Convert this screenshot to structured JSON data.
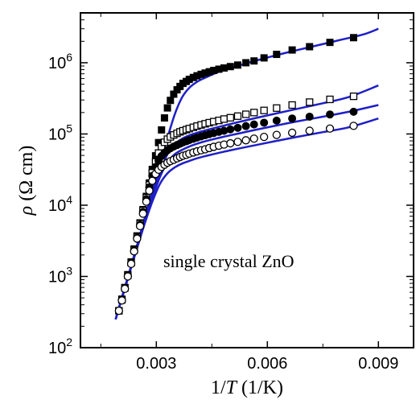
{
  "chart_data": {
    "type": "scatter",
    "title": "",
    "xlabel_prefix": "1/",
    "xlabel_var": "T",
    "xlabel_unit": " (1/K)",
    "ylabel_var": "ρ",
    "ylabel_unit": " (Ω cm)",
    "annotation": "single crystal ZnO",
    "xlim": [
      0.00095,
      0.00995
    ],
    "ylim_log10": [
      2,
      6.7
    ],
    "y_scale": "log",
    "grid": false,
    "legend": "none",
    "x_ticks": [
      {
        "value": 0.003,
        "label": "0.003"
      },
      {
        "value": 0.006,
        "label": "0.006"
      },
      {
        "value": 0.009,
        "label": "0.009"
      }
    ],
    "y_ticks": [
      {
        "exp": 2,
        "base": "10",
        "sup": "2"
      },
      {
        "exp": 3,
        "base": "10",
        "sup": "3"
      },
      {
        "exp": 4,
        "base": "10",
        "sup": "4"
      },
      {
        "exp": 5,
        "base": "10",
        "sup": "5"
      },
      {
        "exp": 6,
        "base": "10",
        "sup": "6"
      }
    ],
    "fit_color": "#1f1fc8",
    "series": [
      {
        "marker": "filled-square",
        "x": [
          0.00199,
          0.00207,
          0.00215,
          0.00223,
          0.00232,
          0.0024,
          0.00248,
          0.00256,
          0.00264,
          0.00273,
          0.00281,
          0.00289,
          0.00298,
          0.00306,
          0.00314,
          0.00322,
          0.0033,
          0.00338,
          0.00347,
          0.00356,
          0.00364,
          0.00372,
          0.00381,
          0.00389,
          0.004,
          0.0041,
          0.00421,
          0.00432,
          0.00443,
          0.00455,
          0.00469,
          0.00483,
          0.005,
          0.0052,
          0.00542,
          0.00564,
          0.00591,
          0.00625,
          0.00667,
          0.00714,
          0.00769,
          0.00833
        ],
        "y": [
          330,
          480,
          700,
          1060,
          1600,
          2430,
          3710,
          5650,
          8670,
          13300,
          20500,
          31800,
          49400,
          75700,
          114000,
          168000,
          232000,
          296000,
          362000,
          417000,
          465000,
          513000,
          546000,
          584000,
          621000,
          656000,
          688000,
          717000,
          747000,
          779000,
          812000,
          844000,
          883000,
          928000,
          1000000,
          1060000,
          1170000,
          1310000,
          1510000,
          1680000,
          1930000,
          2250000
        ],
        "fit_x": [
          0.0019,
          0.0021,
          0.0023,
          0.0025,
          0.0027,
          0.0029,
          0.0031,
          0.0033,
          0.0035,
          0.0037,
          0.0039,
          0.0041,
          0.0043,
          0.0045,
          0.0048,
          0.0052,
          0.0056,
          0.0061,
          0.0066,
          0.0072,
          0.0079,
          0.0086,
          0.009
        ],
        "fit_y": [
          250,
          580,
          1300,
          3000,
          7000,
          16000,
          38000,
          88000,
          190000,
          330000,
          450000,
          540000,
          610000,
          680000,
          780000,
          900000,
          1040000,
          1220000,
          1420000,
          1680000,
          2050000,
          2500000,
          3000000
        ]
      },
      {
        "marker": "open-square",
        "x": [
          0.00199,
          0.00207,
          0.00215,
          0.00223,
          0.00232,
          0.0024,
          0.00248,
          0.00256,
          0.00264,
          0.00273,
          0.00281,
          0.00289,
          0.00298,
          0.00306,
          0.00314,
          0.00322,
          0.0033,
          0.00338,
          0.00347,
          0.00356,
          0.00364,
          0.00372,
          0.00381,
          0.00389,
          0.004,
          0.0041,
          0.00421,
          0.00432,
          0.00443,
          0.00455,
          0.00469,
          0.00483,
          0.005,
          0.0052,
          0.00542,
          0.00564,
          0.00591,
          0.00625,
          0.00667,
          0.00714,
          0.00769,
          0.00833
        ],
        "y": [
          330,
          470,
          690,
          1040,
          1560,
          2350,
          3600,
          5500,
          8400,
          12700,
          19200,
          28500,
          40500,
          54000,
          66500,
          76500,
          84500,
          91000,
          97000,
          102000,
          107000,
          111000,
          115000,
          119000,
          124000,
          129000,
          134000,
          139000,
          144000,
          149000,
          155000,
          162000,
          169000,
          178000,
          189000,
          200000,
          214000,
          231000,
          255000,
          280000,
          306000,
          338000
        ],
        "fit_x": [
          0.0019,
          0.0021,
          0.0023,
          0.0025,
          0.0027,
          0.0029,
          0.0031,
          0.0033,
          0.0035,
          0.0037,
          0.0039,
          0.0041,
          0.0044,
          0.0048,
          0.0052,
          0.0057,
          0.0062,
          0.0068,
          0.0075,
          0.0082,
          0.009
        ],
        "fit_y": [
          250,
          560,
          1260,
          2850,
          6400,
          14000,
          29000,
          52000,
          72000,
          86000,
          96000,
          104000,
          115000,
          130000,
          146000,
          168000,
          192000,
          225000,
          270000,
          330000,
          480000
        ]
      },
      {
        "marker": "filled-circle",
        "x": [
          0.00199,
          0.00207,
          0.00215,
          0.00223,
          0.00232,
          0.0024,
          0.00248,
          0.00256,
          0.00264,
          0.00273,
          0.00281,
          0.00289,
          0.00298,
          0.00306,
          0.00314,
          0.00322,
          0.0033,
          0.00338,
          0.00347,
          0.00356,
          0.00364,
          0.00372,
          0.00381,
          0.00389,
          0.004,
          0.0041,
          0.00421,
          0.00432,
          0.00443,
          0.00455,
          0.00469,
          0.00483,
          0.005,
          0.0052,
          0.00542,
          0.00564,
          0.00591,
          0.00625,
          0.00667,
          0.00714,
          0.00769,
          0.00833
        ],
        "y": [
          330,
          470,
          680,
          1020,
          1530,
          2300,
          3500,
          5300,
          8000,
          12100,
          17900,
          25800,
          34500,
          42500,
          49000,
          54500,
          59000,
          63000,
          66500,
          70000,
          73000,
          76000,
          79000,
          82000,
          85500,
          89000,
          92500,
          96000,
          99500,
          103000,
          107000,
          111000,
          116000,
          122000,
          129000,
          136000,
          144000,
          154000,
          165000,
          175000,
          188000,
          205000
        ],
        "fit_x": [
          0.0019,
          0.0021,
          0.0023,
          0.0025,
          0.0027,
          0.0029,
          0.0031,
          0.0033,
          0.0035,
          0.0037,
          0.0039,
          0.0041,
          0.0044,
          0.0048,
          0.0052,
          0.0057,
          0.0062,
          0.0068,
          0.0075,
          0.0082,
          0.009
        ],
        "fit_y": [
          250,
          560,
          1250,
          2800,
          6200,
          13000,
          25000,
          40000,
          52000,
          60000,
          67000,
          73000,
          81000,
          91000,
          101000,
          115000,
          130000,
          150000,
          175000,
          205000,
          255000
        ]
      },
      {
        "marker": "open-circle",
        "x": [
          0.00199,
          0.00207,
          0.00215,
          0.00223,
          0.00232,
          0.0024,
          0.00248,
          0.00256,
          0.00264,
          0.00273,
          0.00281,
          0.00289,
          0.00298,
          0.00306,
          0.00314,
          0.00322,
          0.0033,
          0.00338,
          0.00347,
          0.00356,
          0.00364,
          0.00372,
          0.00381,
          0.00389,
          0.004,
          0.0041,
          0.00421,
          0.00432,
          0.00443,
          0.00455,
          0.00469,
          0.00483,
          0.005,
          0.0052,
          0.00542,
          0.00564,
          0.00591,
          0.00625,
          0.00667,
          0.00714,
          0.00769,
          0.00833
        ],
        "y": [
          330,
          460,
          670,
          1000,
          1500,
          2250,
          3400,
          5100,
          7600,
          11200,
          16000,
          22000,
          27500,
          31500,
          34500,
          37000,
          39500,
          41500,
          43500,
          45500,
          47500,
          49500,
          51000,
          53000,
          55000,
          57000,
          59000,
          61000,
          63500,
          66000,
          68500,
          71000,
          74000,
          77500,
          81500,
          86000,
          91000,
          97000,
          104000,
          111000,
          119000,
          130000
        ],
        "fit_x": [
          0.0019,
          0.0021,
          0.0023,
          0.0025,
          0.0027,
          0.0029,
          0.0031,
          0.0033,
          0.0035,
          0.0037,
          0.0039,
          0.0041,
          0.0044,
          0.0048,
          0.0052,
          0.0057,
          0.0062,
          0.0068,
          0.0075,
          0.0082,
          0.009
        ],
        "fit_y": [
          250,
          550,
          1230,
          2700,
          5800,
          11500,
          20000,
          28000,
          34000,
          38500,
          42000,
          45500,
          50000,
          56000,
          62000,
          70000,
          79000,
          91000,
          106000,
          124000,
          165000
        ]
      }
    ]
  }
}
